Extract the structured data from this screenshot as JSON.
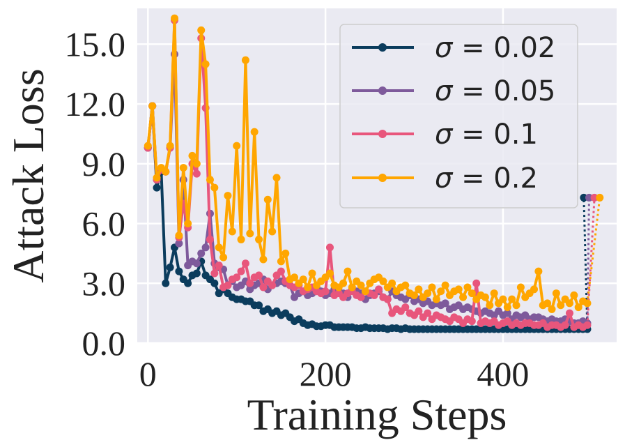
{
  "chart_data": {
    "type": "line",
    "title": "",
    "xlabel": "Training Steps",
    "ylabel": "Attack Loss",
    "xlim": [
      -12,
      528
    ],
    "ylim": [
      0,
      16.8
    ],
    "xticks": [
      0,
      200,
      400
    ],
    "xtick_labels": [
      "0",
      "200",
      "400"
    ],
    "yticks": [
      0,
      3,
      6,
      9,
      12,
      15
    ],
    "ytick_labels": [
      "0.0",
      "3.0",
      "6.0",
      "9.0",
      "12.0",
      "15.0"
    ],
    "grid": true,
    "legend_position": "top-right",
    "x": [
      0,
      5,
      10,
      15,
      20,
      25,
      30,
      35,
      40,
      45,
      50,
      55,
      60,
      65,
      70,
      75,
      80,
      85,
      90,
      95,
      100,
      105,
      110,
      115,
      120,
      125,
      130,
      135,
      140,
      145,
      150,
      155,
      160,
      165,
      170,
      175,
      180,
      185,
      190,
      195,
      200,
      205,
      210,
      215,
      220,
      225,
      230,
      235,
      240,
      245,
      250,
      255,
      260,
      265,
      270,
      275,
      280,
      285,
      290,
      295,
      300,
      305,
      310,
      315,
      320,
      325,
      330,
      335,
      340,
      345,
      350,
      355,
      360,
      365,
      370,
      375,
      380,
      385,
      390,
      395,
      400,
      405,
      410,
      415,
      420,
      425,
      430,
      435,
      440,
      445,
      450,
      455,
      460,
      465,
      470,
      475,
      480,
      485,
      490,
      495,
      500
    ],
    "series": [
      {
        "name": "σ = 0.02",
        "label_symbol": "σ",
        "label_rest": " = 0.02",
        "color": "#0b3c5d",
        "values": [
          9.8,
          11.9,
          7.8,
          8.6,
          3.0,
          3.8,
          4.8,
          3.6,
          3.2,
          3.0,
          3.4,
          3.5,
          4.1,
          3.4,
          3.2,
          3.0,
          2.5,
          2.7,
          2.5,
          2.3,
          2.2,
          2.2,
          2.1,
          2.1,
          1.9,
          1.9,
          1.6,
          1.7,
          1.5,
          1.6,
          1.4,
          1.5,
          1.3,
          1.1,
          1.2,
          1.0,
          0.9,
          0.95,
          0.85,
          0.85,
          0.9,
          0.9,
          0.8,
          0.8,
          0.8,
          0.8,
          0.8,
          0.75,
          0.75,
          0.8,
          0.75,
          0.75,
          0.75,
          0.75,
          0.7,
          0.75,
          0.75,
          0.7,
          0.75,
          0.7,
          0.7,
          0.7,
          0.7,
          0.7,
          0.7,
          0.7,
          0.7,
          0.7,
          0.7,
          0.7,
          0.7,
          0.7,
          0.7,
          0.7,
          0.7,
          0.7,
          0.7,
          0.7,
          0.7,
          0.7,
          0.7,
          0.7,
          0.7,
          0.7,
          0.7,
          0.7,
          0.7,
          0.7,
          0.7,
          0.7,
          0.7,
          0.7,
          0.7,
          0.7,
          0.7,
          0.7,
          0.7,
          0.7,
          0.7,
          0.7,
          7.3
        ]
      },
      {
        "name": "σ = 0.05",
        "label_symbol": "σ",
        "label_rest": " = 0.05",
        "color": "#7e5a9b",
        "values": [
          9.8,
          11.9,
          8.2,
          8.7,
          8.6,
          9.8,
          14.5,
          5.0,
          8.2,
          3.9,
          4.1,
          4.0,
          4.5,
          4.8,
          6.5,
          4.0,
          3.8,
          3.7,
          2.9,
          3.1,
          2.8,
          2.9,
          3.1,
          2.7,
          2.9,
          3.0,
          3.2,
          2.7,
          2.9,
          3.0,
          3.1,
          3.0,
          2.9,
          2.3,
          2.5,
          2.6,
          2.4,
          2.5,
          2.8,
          2.6,
          2.4,
          2.5,
          2.7,
          2.6,
          2.5,
          2.3,
          2.7,
          2.6,
          2.5,
          2.2,
          2.4,
          2.5,
          2.6,
          2.3,
          2.2,
          2.6,
          2.4,
          2.3,
          2.2,
          2.4,
          2.1,
          2.2,
          2.0,
          2.1,
          1.9,
          2.0,
          1.9,
          2.0,
          1.7,
          1.8,
          1.9,
          1.7,
          1.8,
          1.7,
          1.6,
          1.5,
          1.6,
          1.5,
          1.4,
          1.6,
          1.4,
          1.5,
          1.2,
          1.4,
          1.3,
          1.4,
          1.2,
          1.3,
          1.3,
          1.2,
          1.1,
          1.2,
          1.1,
          1.1,
          1.2,
          1.1,
          1.0,
          1.0,
          1.1,
          1.0,
          7.3
        ]
      },
      {
        "name": "σ = 0.1",
        "label_symbol": "σ",
        "label_rest": " = 0.1",
        "color": "#e8567c",
        "values": [
          9.8,
          11.9,
          8.2,
          8.7,
          8.6,
          9.8,
          16.2,
          5.3,
          7.0,
          5.8,
          9.0,
          8.5,
          15.3,
          11.8,
          5.2,
          3.5,
          3.9,
          2.8,
          2.9,
          3.2,
          3.3,
          3.6,
          4.0,
          3.0,
          3.3,
          3.4,
          2.8,
          3.1,
          2.9,
          3.4,
          3.6,
          3.1,
          2.9,
          2.8,
          2.9,
          2.6,
          2.7,
          2.8,
          2.6,
          2.5,
          2.6,
          4.8,
          2.4,
          2.5,
          2.3,
          2.5,
          2.6,
          2.4,
          2.3,
          2.6,
          2.5,
          2.4,
          2.7,
          2.3,
          2.2,
          1.5,
          1.7,
          1.6,
          1.8,
          1.5,
          1.4,
          1.6,
          1.3,
          1.5,
          1.2,
          1.4,
          1.3,
          1.2,
          1.1,
          1.3,
          1.2,
          1.0,
          1.2,
          1.1,
          3.0,
          1.0,
          1.1,
          1.0,
          1.1,
          0.9,
          1.0,
          1.1,
          0.9,
          1.0,
          0.9,
          1.0,
          1.0,
          0.9,
          0.9,
          1.0,
          0.8,
          0.9,
          0.9,
          0.8,
          0.9,
          1.5,
          0.8,
          0.9,
          0.8,
          0.9,
          7.3
        ]
      },
      {
        "name": "σ = 0.2",
        "label_symbol": "σ",
        "label_rest": " = 0.2",
        "color": "#ffa600",
        "values": [
          9.9,
          11.9,
          8.3,
          8.8,
          8.6,
          9.9,
          16.3,
          5.4,
          8.8,
          6.0,
          9.4,
          9.0,
          15.7,
          14.0,
          8.2,
          7.8,
          4.8,
          4.3,
          7.4,
          5.6,
          9.9,
          5.2,
          14.2,
          5.5,
          10.6,
          5.2,
          4.2,
          7.2,
          5.6,
          8.3,
          4.1,
          4.5,
          3.2,
          3.3,
          3.0,
          3.2,
          2.8,
          3.5,
          2.9,
          3.1,
          3.3,
          3.5,
          2.9,
          2.8,
          3.0,
          3.6,
          2.8,
          3.1,
          2.9,
          2.6,
          3.0,
          3.2,
          3.3,
          3.1,
          2.8,
          3.0,
          2.6,
          2.8,
          2.9,
          2.5,
          2.4,
          2.7,
          2.3,
          2.5,
          2.8,
          2.2,
          2.6,
          2.9,
          2.4,
          2.6,
          2.7,
          2.3,
          2.8,
          2.5,
          2.2,
          2.4,
          2.3,
          1.9,
          2.5,
          2.0,
          2.2,
          1.8,
          2.2,
          1.9,
          2.8,
          2.3,
          2.5,
          2.7,
          3.6,
          1.9,
          2.0,
          1.7,
          2.5,
          1.9,
          2.2,
          2.0,
          2.4,
          1.8,
          2.1,
          2.0,
          7.3
        ]
      }
    ]
  }
}
